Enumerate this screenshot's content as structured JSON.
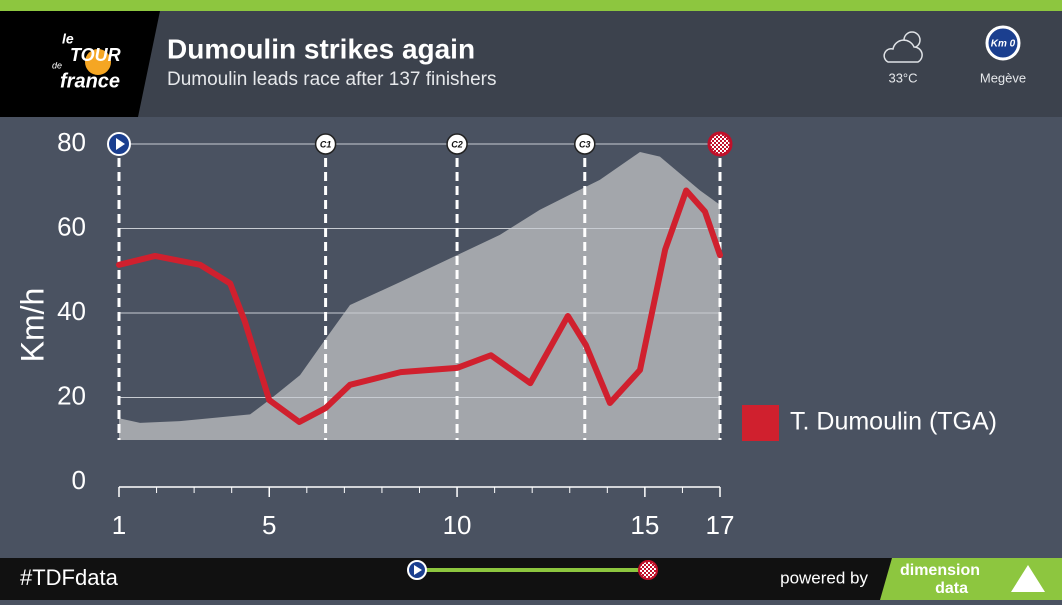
{
  "header": {
    "title": "Dumoulin strikes again",
    "subtitle": "Dumoulin leads race after 137 finishers",
    "logo_text": [
      "le",
      "TOUR",
      "de",
      "france"
    ],
    "weather": "33°C",
    "start_badge": "Km 0",
    "start_town": "Megève"
  },
  "chart_data": {
    "type": "line",
    "y_label": "Km/h",
    "xlim": [
      1,
      17
    ],
    "ylim": [
      0,
      80
    ],
    "xticks": [
      1,
      5,
      10,
      15,
      17
    ],
    "xminor_ticks": [
      2,
      3,
      4,
      6,
      7,
      8,
      9,
      11,
      12,
      13,
      14,
      16
    ],
    "yticks": [
      0,
      20,
      40,
      60,
      80
    ],
    "grid": true,
    "legend": "right",
    "series": [
      {
        "name": "T. Dumoulin (TGA)",
        "color": "#d0202e",
        "x": [
          1,
          1.96,
          3.16,
          3.96,
          4.35,
          5,
          5.8,
          6.5,
          7.15,
          8.5,
          10,
          10.9,
          11.95,
          12.95,
          13.43,
          14.07,
          14.87,
          15.54,
          16.1,
          16.6,
          17
        ],
        "values": [
          51.4,
          53.5,
          51.4,
          47,
          38,
          19.4,
          14.2,
          17.5,
          23,
          26,
          27,
          30,
          23.4,
          39.3,
          32.4,
          18.7,
          26.5,
          55,
          69,
          64,
          53.7
        ]
      }
    ],
    "profile": {
      "color": "#a3a6ab",
      "x": [
        1,
        1.56,
        2.62,
        3.42,
        4.49,
        5,
        5.82,
        6.48,
        7.15,
        8.48,
        10,
        11.14,
        12.2,
        13,
        13.8,
        14.87,
        15.4,
        16.47,
        17
      ],
      "values": [
        15.1,
        14,
        14.4,
        15.1,
        16,
        19.4,
        25.3,
        33.6,
        41.9,
        47.3,
        53.7,
        58.5,
        64.4,
        68,
        71.5,
        78.1,
        77,
        69,
        65.6
      ]
    },
    "checkpoints": {
      "x": [
        1,
        6.5,
        10,
        13.4,
        17
      ],
      "labels": [
        null,
        "C1",
        "C2",
        "C3",
        null
      ]
    }
  },
  "footer": {
    "hashtag": "#TDFdata",
    "powered_by": "powered by",
    "sponsor": [
      "dimension",
      "data"
    ]
  }
}
